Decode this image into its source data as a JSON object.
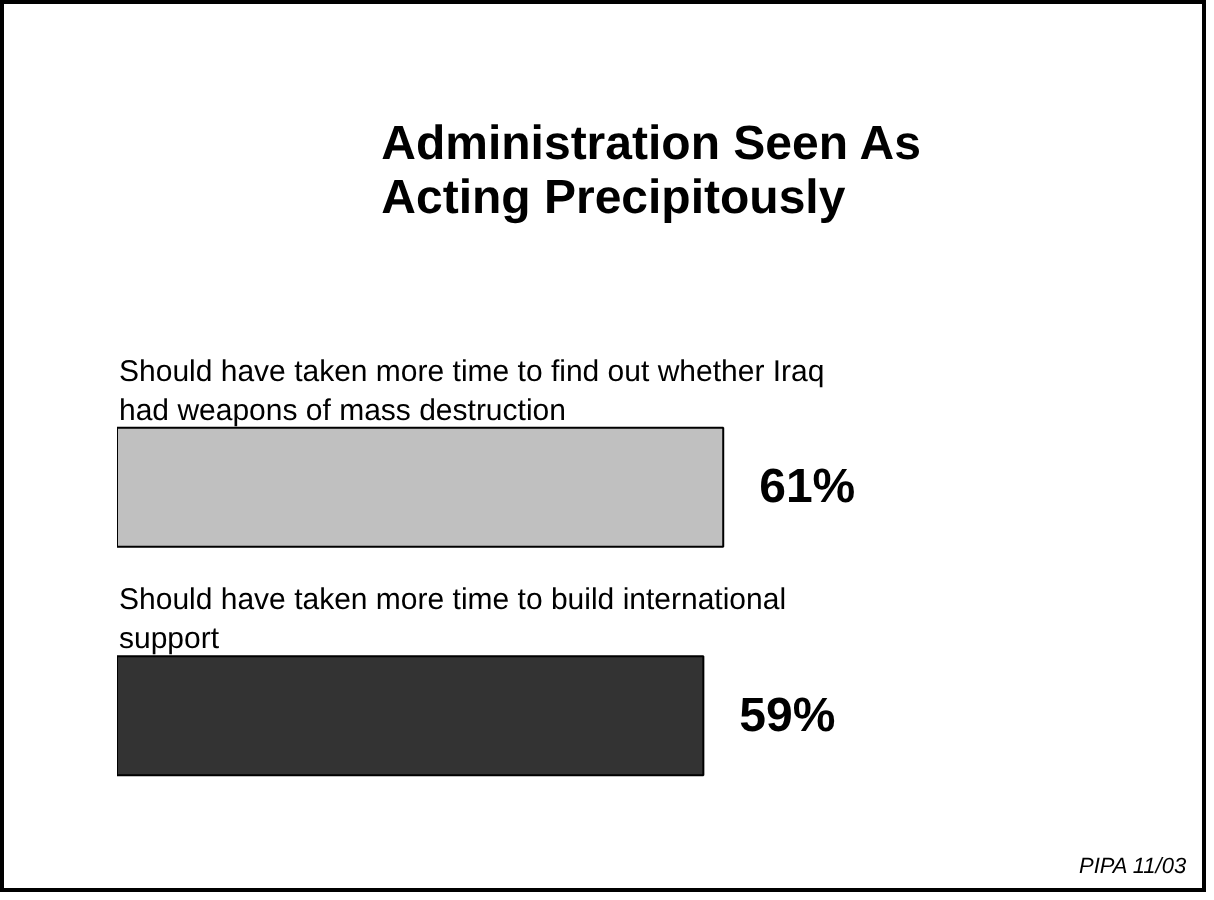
{
  "chart_data": {
    "type": "bar",
    "orientation": "horizontal",
    "title": "Administration Seen As\nActing Precipitously",
    "categories": [
      "Should have taken more time to find out whether Iraq had weapons of mass destruction",
      "Should have taken more time to build international support"
    ],
    "values": [
      61,
      59
    ],
    "value_labels": [
      "61%",
      "59%"
    ],
    "colors": [
      "#c0c0c0",
      "#333333"
    ],
    "tick_labels": false,
    "grid": false,
    "annotations": [
      "PIPA 11/03"
    ]
  }
}
